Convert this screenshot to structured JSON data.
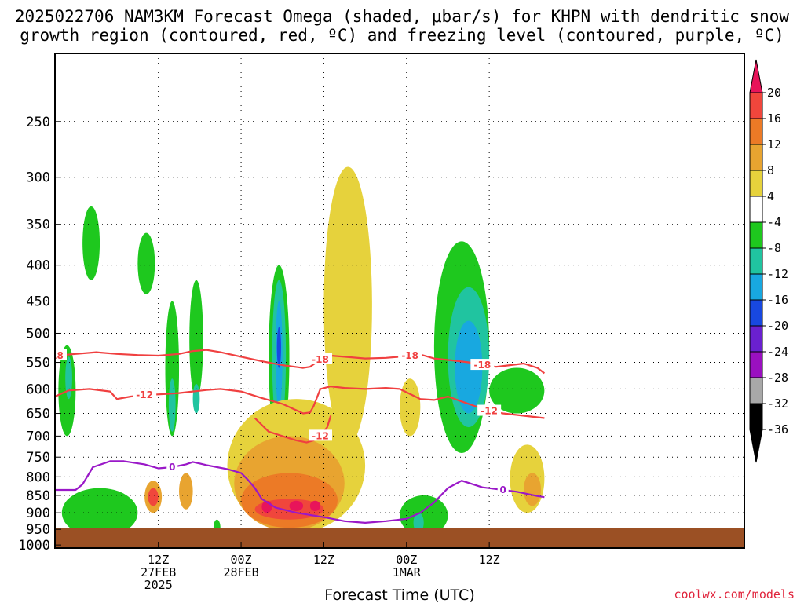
{
  "title_line1": "2025022706 NAM3KM Forecast Omega (shaded, μbar/s) for KHPN with dendritic snow",
  "title_line2": "growth region (contoured, red, ºC) and freezing level (contoured, purple, ºC)",
  "credit": "coolwx.com/models",
  "credit_color": "#e0223a",
  "chart_data": {
    "type": "time-height cross section",
    "title": "2025022706 NAM3KM Forecast Omega (shaded, μbar/s) for KHPN with dendritic snow growth region (contoured, red, ºC) and freezing level (contoured, purple, ºC)",
    "xlabel": "Forecast Time (UTC)",
    "ylabel": "",
    "y_axis": {
      "scale": "log-pressure",
      "inverted": true,
      "ticks": [
        250,
        300,
        350,
        400,
        450,
        500,
        550,
        600,
        650,
        700,
        750,
        800,
        850,
        900,
        950,
        1000
      ],
      "range": [
        200,
        1010
      ]
    },
    "x_axis": {
      "range_hours": [
        -15,
        85
      ],
      "ticks": [
        {
          "h": 0,
          "line1": "12Z",
          "line2": "27FEB",
          "line3": "2025"
        },
        {
          "h": 12,
          "line1": "00Z",
          "line2": "28FEB",
          "line3": ""
        },
        {
          "h": 24,
          "line1": "12Z",
          "line2": "",
          "line3": ""
        },
        {
          "h": 36,
          "line1": "00Z",
          "line2": "1MAR",
          "line3": ""
        },
        {
          "h": 48,
          "line1": "12Z",
          "line2": "",
          "line3": ""
        }
      ]
    },
    "grid": "dotted horizontal at pressure ticks, dotted vertical at time ticks",
    "colorbar": {
      "labels": [
        "20",
        "16",
        "12",
        "8",
        "4",
        "-4",
        "-8",
        "-12",
        "-16",
        "-20",
        "-24",
        "-28",
        "-32",
        "-36"
      ],
      "colors": [
        "#e8145a",
        "#f0463c",
        "#ec7a26",
        "#e8a430",
        "#e6d23c",
        "#ffffff",
        "#1ec81e",
        "#20c4a0",
        "#18a8e0",
        "#1848e0",
        "#6a20d0",
        "#9a10c0",
        "#a8a8a8",
        "#000000"
      ]
    },
    "contour_lines": [
      {
        "name": "-18",
        "color": "#f04040",
        "points": [
          [
            -15,
            538
          ],
          [
            -12,
            535
          ],
          [
            -9,
            532
          ],
          [
            -6,
            535
          ],
          [
            -3,
            537
          ],
          [
            0,
            538
          ],
          [
            3,
            535
          ],
          [
            5,
            530
          ],
          [
            7,
            528
          ],
          [
            9,
            532
          ],
          [
            12,
            540
          ],
          [
            15,
            548
          ],
          [
            18,
            555
          ],
          [
            21,
            560
          ],
          [
            22,
            558
          ],
          [
            23.5,
            545
          ],
          [
            25,
            538
          ],
          [
            27,
            540
          ],
          [
            30,
            543
          ],
          [
            33,
            542
          ],
          [
            35,
            540
          ],
          [
            36.5,
            538
          ],
          [
            38,
            536
          ],
          [
            40,
            543
          ],
          [
            43,
            547
          ],
          [
            45,
            550
          ],
          [
            47,
            555
          ],
          [
            49,
            558
          ],
          [
            51,
            555
          ],
          [
            53,
            552
          ],
          [
            55,
            560
          ],
          [
            56,
            570
          ]
        ]
      },
      {
        "name": "-12",
        "color": "#f04040",
        "points": [
          [
            -15,
            615
          ],
          [
            -13,
            603
          ],
          [
            -10,
            600
          ],
          [
            -7,
            605
          ],
          [
            -6,
            620
          ],
          [
            -4,
            615
          ],
          [
            -2,
            612
          ],
          [
            1,
            610
          ],
          [
            3,
            608
          ],
          [
            5,
            605
          ],
          [
            7,
            602
          ],
          [
            9,
            600
          ],
          [
            12,
            605
          ],
          [
            15,
            618
          ],
          [
            18,
            630
          ],
          [
            19.5,
            640
          ],
          [
            21,
            650
          ],
          [
            22,
            648
          ],
          [
            22.5,
            635
          ],
          [
            23.5,
            600
          ],
          [
            25,
            595
          ],
          [
            27,
            598
          ],
          [
            30,
            600
          ],
          [
            33,
            598
          ],
          [
            35,
            600
          ],
          [
            36.5,
            610
          ],
          [
            38,
            620
          ],
          [
            40,
            622
          ],
          [
            42,
            615
          ],
          [
            44,
            625
          ],
          [
            46,
            635
          ],
          [
            48,
            645
          ],
          [
            50,
            650
          ],
          [
            53,
            655
          ],
          [
            56,
            660
          ]
        ]
      },
      {
        "name": "-12",
        "color": "#f04040",
        "points": [
          [
            14,
            660
          ],
          [
            16,
            690
          ],
          [
            18,
            700
          ],
          [
            20,
            710
          ],
          [
            21.5,
            715
          ],
          [
            22.5,
            710
          ],
          [
            23.5,
            700
          ],
          [
            24.5,
            680
          ],
          [
            25,
            655
          ]
        ]
      },
      {
        "name": "0",
        "color": "#9a18c8",
        "points": [
          [
            -15,
            835
          ],
          [
            -12,
            835
          ],
          [
            -11,
            820
          ],
          [
            -9.5,
            775
          ],
          [
            -7,
            760
          ],
          [
            -5,
            760
          ],
          [
            -2,
            768
          ],
          [
            0,
            778
          ],
          [
            2,
            775
          ],
          [
            4,
            768
          ],
          [
            5,
            762
          ],
          [
            7,
            770
          ],
          [
            10,
            780
          ],
          [
            12,
            790
          ],
          [
            13,
            808
          ],
          [
            14,
            830
          ],
          [
            15,
            860
          ],
          [
            17,
            885
          ],
          [
            20,
            900
          ],
          [
            24,
            913
          ],
          [
            27,
            925
          ],
          [
            30,
            930
          ],
          [
            33,
            925
          ],
          [
            36,
            918
          ],
          [
            38,
            900
          ],
          [
            40,
            870
          ],
          [
            42,
            830
          ],
          [
            44,
            810
          ],
          [
            47,
            828
          ],
          [
            50,
            835
          ],
          [
            52,
            840
          ],
          [
            55,
            852
          ],
          [
            56,
            855
          ]
        ]
      }
    ],
    "omega_regions": [
      {
        "bin": "-4",
        "t0": -14.5,
        "t1": -12,
        "p0": 520,
        "p1": 700
      },
      {
        "bin": "-8",
        "t0": -13.5,
        "t1": -12.5,
        "p0": 540,
        "p1": 620
      },
      {
        "bin": "-4",
        "t0": -11,
        "t1": -8.5,
        "p0": 330,
        "p1": 420
      },
      {
        "bin": "-4",
        "t0": -3,
        "t1": -0.5,
        "p0": 360,
        "p1": 440
      },
      {
        "bin": "-4",
        "t0": 1,
        "t1": 3,
        "p0": 450,
        "p1": 700
      },
      {
        "bin": "-8",
        "t0": 1.5,
        "t1": 2.5,
        "p0": 580,
        "p1": 690
      },
      {
        "bin": "-4",
        "t0": 4.5,
        "t1": 6.5,
        "p0": 420,
        "p1": 620
      },
      {
        "bin": "-8",
        "t0": 5,
        "t1": 6,
        "p0": 590,
        "p1": 650
      },
      {
        "bin": "-4",
        "t0": 16,
        "t1": 19,
        "p0": 400,
        "p1": 730
      },
      {
        "bin": "-8",
        "t0": 16.5,
        "t1": 18.5,
        "p0": 420,
        "p1": 690
      },
      {
        "bin": "-12",
        "t0": 17,
        "t1": 18,
        "p0": 450,
        "p1": 640
      },
      {
        "bin": "-16",
        "t0": 17.2,
        "t1": 17.8,
        "p0": 490,
        "p1": 560
      },
      {
        "bin": "-4",
        "t0": 40,
        "t1": 48,
        "p0": 370,
        "p1": 740
      },
      {
        "bin": "-8",
        "t0": 42,
        "t1": 48,
        "p0": 430,
        "p1": 680
      },
      {
        "bin": "-12",
        "t0": 43,
        "t1": 47,
        "p0": 480,
        "p1": 650
      },
      {
        "bin": "-4",
        "t0": 48,
        "t1": 56,
        "p0": 560,
        "p1": 650
      },
      {
        "bin": "-4",
        "t0": 35,
        "t1": 42,
        "p0": 850,
        "p1": 970
      },
      {
        "bin": "-8",
        "t0": 37,
        "t1": 38.5,
        "p0": 900,
        "p1": 960
      },
      {
        "bin": "-4",
        "t0": -14,
        "t1": -3,
        "p0": 830,
        "p1": 975
      },
      {
        "bin": "-4",
        "t0": 8,
        "t1": 9,
        "p0": 920,
        "p1": 970
      },
      {
        "bin": "4",
        "t0": 10,
        "t1": 30,
        "p0": 620,
        "p1": 960
      },
      {
        "bin": "4",
        "t0": 24,
        "t1": 31,
        "p0": 290,
        "p1": 720
      },
      {
        "bin": "4",
        "t0": 35,
        "t1": 38,
        "p0": 580,
        "p1": 700
      },
      {
        "bin": "8",
        "t0": 11,
        "t1": 27,
        "p0": 700,
        "p1": 955
      },
      {
        "bin": "12",
        "t0": 12,
        "t1": 26,
        "p0": 790,
        "p1": 945
      },
      {
        "bin": "16",
        "t0": 14,
        "t1": 24,
        "p0": 860,
        "p1": 920
      },
      {
        "bin": "20",
        "t0": 15,
        "t1": 16.5,
        "p0": 865,
        "p1": 900
      },
      {
        "bin": "20",
        "t0": 19,
        "t1": 21,
        "p0": 865,
        "p1": 895
      },
      {
        "bin": "20",
        "t0": 22,
        "t1": 23.5,
        "p0": 865,
        "p1": 895
      },
      {
        "bin": "8",
        "t0": -2,
        "t1": 0.5,
        "p0": 810,
        "p1": 900
      },
      {
        "bin": "16",
        "t0": -1.5,
        "t1": 0,
        "p0": 830,
        "p1": 880
      },
      {
        "bin": "8",
        "t0": 3,
        "t1": 5,
        "p0": 790,
        "p1": 890
      },
      {
        "bin": "4",
        "t0": 51,
        "t1": 56,
        "p0": 720,
        "p1": 900
      },
      {
        "bin": "8",
        "t0": 53,
        "t1": 55.5,
        "p0": 790,
        "p1": 880
      }
    ]
  }
}
